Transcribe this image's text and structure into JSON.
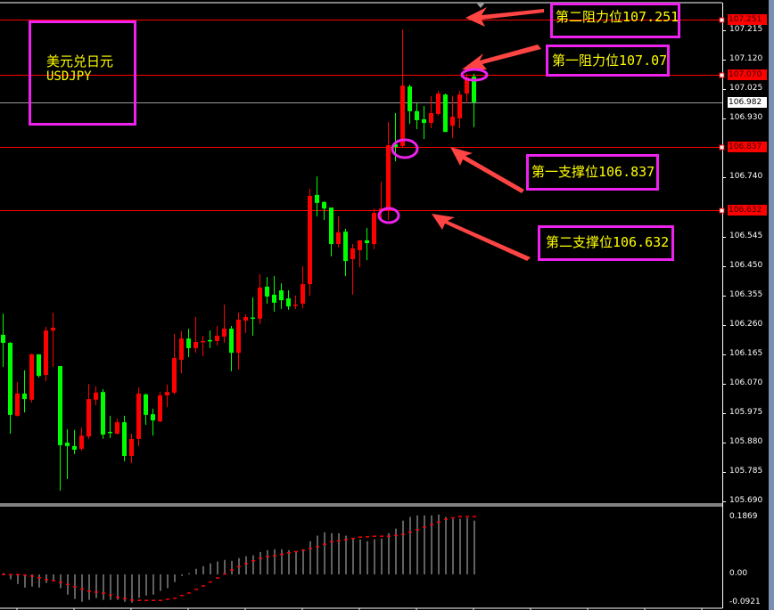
{
  "title_box": {
    "name_cn": "美元兑日元",
    "symbol": "USDJPY"
  },
  "annotations": [
    {
      "text": "第二阻力位107.251",
      "level": 107.251
    },
    {
      "text": "第一阻力位107.07",
      "level": 107.07
    },
    {
      "text": "第一支撑位106.837",
      "level": 106.837
    },
    {
      "text": "第二支撑位106.632",
      "level": 106.632
    }
  ],
  "colors": {
    "bull": "#ff0000",
    "bear": "#00ff00",
    "level_line": "#ff0000",
    "annotation_box": "#ee22ee",
    "annotation_text": "#ffff00",
    "arrow": "#ff4444",
    "histogram": "#c0c0c0",
    "signal": "#ff0000",
    "background": "#000000"
  },
  "chart_data": [
    {
      "type": "candlestick",
      "symbol": "USDJPY",
      "ylim": [
        105.69,
        107.28
      ],
      "y_ticks": [
        "107.215",
        "107.120",
        "107.025",
        "106.930",
        "106.740",
        "106.545",
        "106.450",
        "106.355",
        "106.260",
        "106.165",
        "106.070",
        "105.975",
        "105.880",
        "105.785",
        "105.690"
      ],
      "price_tags": [
        {
          "text": "107.251",
          "value": 107.251,
          "style": "level"
        },
        {
          "text": "107.070",
          "value": 107.07,
          "style": "level"
        },
        {
          "text": "106.982",
          "value": 106.982,
          "style": "current"
        },
        {
          "text": "106.837",
          "value": 106.837,
          "style": "level"
        },
        {
          "text": "106.632",
          "value": 106.632,
          "style": "level"
        }
      ],
      "current_price": 106.982,
      "ohlc": [
        [
          106.229,
          106.298,
          106.125,
          106.203
        ],
        [
          106.203,
          106.206,
          105.909,
          105.97
        ],
        [
          105.967,
          106.076,
          105.964,
          106.039
        ],
        [
          106.039,
          106.114,
          105.978,
          106.021
        ],
        [
          106.019,
          106.168,
          106.01,
          106.166
        ],
        [
          106.166,
          106.166,
          106.091,
          106.096
        ],
        [
          106.099,
          106.255,
          106.079,
          106.243
        ],
        [
          106.243,
          106.301,
          106.125,
          106.252
        ],
        [
          106.128,
          106.128,
          105.724,
          105.872
        ],
        [
          105.88,
          105.923,
          105.762,
          105.869
        ],
        [
          105.869,
          105.921,
          105.843,
          105.857
        ],
        [
          105.86,
          105.929,
          105.854,
          105.903
        ],
        [
          105.9,
          106.07,
          105.892,
          106.021
        ],
        [
          106.019,
          106.062,
          106.001,
          106.042
        ],
        [
          106.044,
          106.053,
          105.892,
          105.906
        ],
        [
          105.915,
          105.967,
          105.895,
          105.914
        ],
        [
          105.909,
          105.958,
          105.906,
          105.946
        ],
        [
          105.946,
          105.967,
          105.82,
          105.837
        ],
        [
          105.837,
          105.909,
          105.814,
          105.892
        ],
        [
          105.892,
          106.059,
          105.869,
          106.039
        ],
        [
          106.036,
          106.039,
          105.938,
          105.97
        ],
        [
          105.972,
          105.99,
          105.903,
          105.952
        ],
        [
          105.949,
          106.044,
          105.946,
          106.033
        ],
        [
          106.033,
          106.068,
          105.995,
          106.044
        ],
        [
          106.042,
          106.232,
          106.036,
          106.154
        ],
        [
          106.148,
          106.241,
          106.105,
          106.217
        ],
        [
          106.217,
          106.249,
          106.157,
          106.186
        ],
        [
          106.186,
          106.287,
          106.171,
          106.206
        ],
        [
          106.208,
          106.226,
          106.16,
          106.209
        ],
        [
          106.212,
          106.243,
          106.186,
          106.211
        ],
        [
          106.209,
          106.258,
          106.194,
          106.226
        ],
        [
          106.223,
          106.327,
          106.203,
          106.249
        ],
        [
          106.249,
          106.258,
          106.111,
          106.171
        ],
        [
          106.171,
          106.301,
          106.117,
          106.278
        ],
        [
          106.275,
          106.295,
          106.235,
          106.287
        ],
        [
          106.285,
          106.35,
          106.226,
          106.284
        ],
        [
          106.281,
          106.425,
          106.264,
          106.382
        ],
        [
          106.385,
          106.416,
          106.33,
          106.353
        ],
        [
          106.359,
          106.419,
          106.304,
          106.333
        ],
        [
          106.373,
          106.396,
          106.313,
          106.341
        ],
        [
          106.347,
          106.373,
          106.31,
          106.321
        ],
        [
          106.326,
          106.356,
          106.313,
          106.327
        ],
        [
          106.33,
          106.451,
          106.315,
          106.393
        ],
        [
          106.393,
          106.702,
          106.356,
          106.679
        ],
        [
          106.682,
          106.742,
          106.612,
          106.656
        ],
        [
          106.659,
          106.661,
          106.601,
          106.638
        ],
        [
          106.641,
          106.641,
          106.483,
          106.523
        ],
        [
          106.523,
          106.612,
          106.512,
          106.561
        ],
        [
          106.563,
          106.572,
          106.419,
          106.468
        ],
        [
          106.474,
          106.523,
          106.359,
          106.509
        ],
        [
          106.503,
          106.535,
          106.448,
          106.535
        ],
        [
          106.535,
          106.575,
          106.471,
          106.526
        ],
        [
          106.523,
          106.638,
          106.506,
          106.624
        ],
        [
          106.63,
          106.725,
          106.601,
          106.638
        ],
        [
          106.63,
          106.918,
          106.601,
          106.843
        ],
        [
          106.846,
          106.947,
          106.791,
          106.837
        ],
        [
          106.84,
          107.218,
          106.837,
          107.036
        ],
        [
          107.033,
          107.039,
          106.912,
          106.953
        ],
        [
          106.953,
          106.979,
          106.895,
          106.924
        ],
        [
          106.927,
          106.97,
          106.863,
          106.915
        ],
        [
          106.915,
          107.002,
          106.898,
          106.947
        ],
        [
          106.944,
          107.019,
          106.938,
          107.01
        ],
        [
          107.007,
          107.01,
          106.886,
          106.886
        ],
        [
          106.906,
          107.003,
          106.866,
          106.935
        ],
        [
          106.93,
          107.019,
          106.898,
          107.007
        ],
        [
          107.01,
          107.074,
          106.979,
          107.062
        ],
        [
          107.065,
          107.074,
          106.901,
          106.982
        ]
      ]
    },
    {
      "type": "bar",
      "subtype": "macd-histogram-with-signal",
      "ylim": [
        -0.0921,
        0.1869
      ],
      "y_ticks": [
        "0.1869",
        "0.00",
        "-0.0921"
      ],
      "histogram": [
        0.004,
        -0.016,
        -0.031,
        -0.043,
        -0.04,
        -0.043,
        -0.028,
        -0.019,
        -0.045,
        -0.066,
        -0.08,
        -0.089,
        -0.083,
        -0.077,
        -0.083,
        -0.083,
        -0.083,
        -0.089,
        -0.092,
        -0.077,
        -0.069,
        -0.066,
        -0.054,
        -0.045,
        -0.025,
        -0.005,
        0.004,
        0.018,
        0.027,
        0.036,
        0.042,
        0.047,
        0.044,
        0.053,
        0.059,
        0.062,
        0.073,
        0.079,
        0.082,
        0.082,
        0.079,
        0.076,
        0.082,
        0.108,
        0.126,
        0.137,
        0.134,
        0.134,
        0.126,
        0.117,
        0.114,
        0.108,
        0.114,
        0.117,
        0.134,
        0.149,
        0.175,
        0.187,
        0.192,
        0.192,
        0.192,
        0.195,
        0.187,
        0.181,
        0.181,
        0.184,
        0.175
      ],
      "signal": [
        0,
        0,
        0,
        -0.002,
        -0.005,
        -0.01,
        -0.016,
        -0.02,
        -0.025,
        -0.032,
        -0.04,
        -0.047,
        -0.054,
        -0.057,
        -0.06,
        -0.067,
        -0.074,
        -0.078,
        -0.083,
        -0.084,
        -0.084,
        -0.084,
        -0.084,
        -0.08,
        -0.077,
        -0.068,
        -0.06,
        -0.048,
        -0.037,
        -0.024,
        -0.011,
        0.002,
        0.015,
        0.026,
        0.036,
        0.045,
        0.053,
        0.058,
        0.062,
        0.066,
        0.071,
        0.075,
        0.079,
        0.085,
        0.091,
        0.099,
        0.107,
        0.11,
        0.114,
        0.118,
        0.122,
        0.123,
        0.125,
        0.125,
        0.125,
        0.128,
        0.131,
        0.138,
        0.146,
        0.155,
        0.163,
        0.171,
        0.18,
        0.185,
        0.189,
        0.189,
        0.189
      ]
    }
  ]
}
